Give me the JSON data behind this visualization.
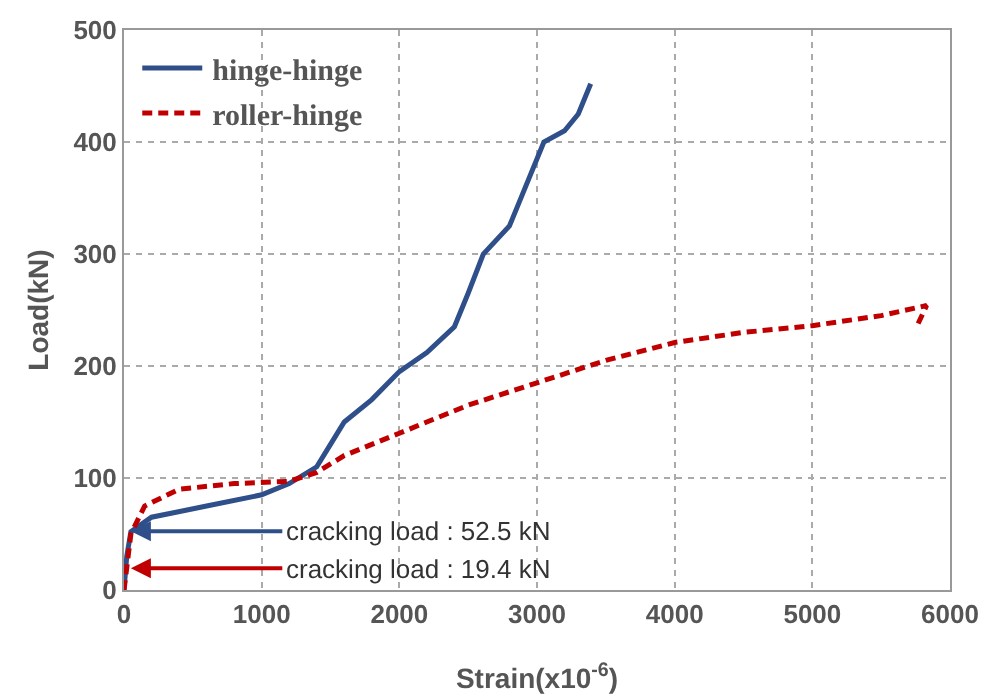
{
  "chart_data": {
    "type": "line",
    "xlabel": "Strain(x10$^{-6}$)",
    "ylabel": "Load(kN)",
    "xlim": [
      0,
      6000
    ],
    "xticks": [
      0,
      1000,
      2000,
      3000,
      4000,
      5000,
      6000
    ],
    "ylim": [
      0,
      500
    ],
    "yticks": [
      0,
      100,
      200,
      300,
      400,
      500
    ],
    "grid": true,
    "legend": "top left",
    "series": [
      {
        "name": "hinge-hinge",
        "color": "#2f4f8a",
        "line_style": "solid",
        "x": [
          0,
          20,
          50,
          200,
          600,
          1000,
          1200,
          1400,
          1500,
          1600,
          1800,
          2000,
          2200,
          2400,
          2500,
          2610,
          2800,
          2900,
          3050,
          3200,
          3300,
          3390
        ],
        "values": [
          0,
          30,
          52,
          65,
          75,
          85,
          95,
          110,
          130,
          150,
          170,
          195,
          212,
          235,
          265,
          300,
          325,
          355,
          400,
          410,
          425,
          452
        ]
      },
      {
        "name": "roller-hinge",
        "color": "#c00000",
        "line_style": "dashed",
        "x": [
          0,
          20,
          50,
          150,
          400,
          800,
          1200,
          1400,
          1600,
          2000,
          2500,
          3000,
          3500,
          4000,
          4500,
          5000,
          5500,
          5830,
          5750
        ],
        "values": [
          0,
          20,
          50,
          75,
          90,
          95,
          97,
          105,
          120,
          140,
          165,
          185,
          205,
          221,
          230,
          236,
          245,
          254,
          233
        ]
      }
    ],
    "annotations": [
      {
        "text": "cracking load : 52.5 kN",
        "x": 50,
        "y": 52.5
      },
      {
        "text": "cracking load : 19.4 kN",
        "x": 50,
        "y": 19.4
      }
    ]
  }
}
